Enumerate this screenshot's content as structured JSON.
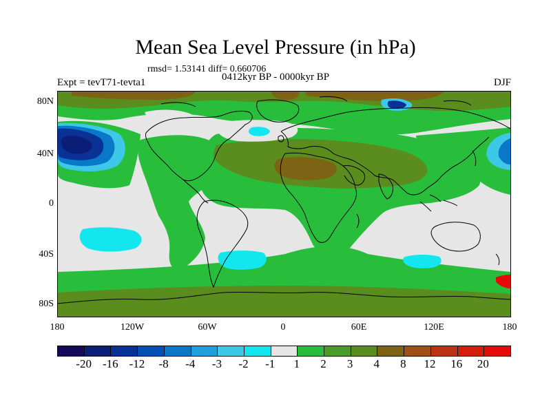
{
  "title": "Mean Sea Level Pressure (in hPa)",
  "stats": "rmsd= 1.53141 diff= 0.660706",
  "period": "0412kyr BP - 0000kyr BP",
  "experiment": "Expt = tevT71-tevta1",
  "season": "DJF",
  "lat_labels": [
    "80N",
    "40N",
    "0",
    "40S",
    "80S"
  ],
  "lon_labels": [
    "180",
    "120W",
    "60W",
    "0",
    "60E",
    "120E",
    "180"
  ],
  "colorbar": {
    "labels": [
      "-20",
      "-16",
      "-12",
      "-8",
      "-4",
      "-3",
      "-2",
      "-1",
      "1",
      "2",
      "3",
      "4",
      "8",
      "12",
      "16",
      "20"
    ],
    "colors": [
      "#140a5a",
      "#0a1e78",
      "#0a3296",
      "#0550b4",
      "#0a78c8",
      "#1ea0dc",
      "#3cc8e6",
      "#14e6f0",
      "#e6e6e6",
      "#28be3c",
      "#4b9b28",
      "#5a8c1e",
      "#7d6414",
      "#a05014",
      "#be3214",
      "#d21e0a",
      "#e60a0a"
    ]
  },
  "palette": {
    "neutral": "#e6e6e6",
    "green": "#28be3c",
    "olive": "#5a8c1e",
    "brown": "#7d6414",
    "cyan": "#14e6f0",
    "lightblue": "#3cc8e6",
    "midblue": "#0a78c8",
    "blue": "#0a3296",
    "darkblue": "#0a1e78",
    "coast": "#000000"
  }
}
